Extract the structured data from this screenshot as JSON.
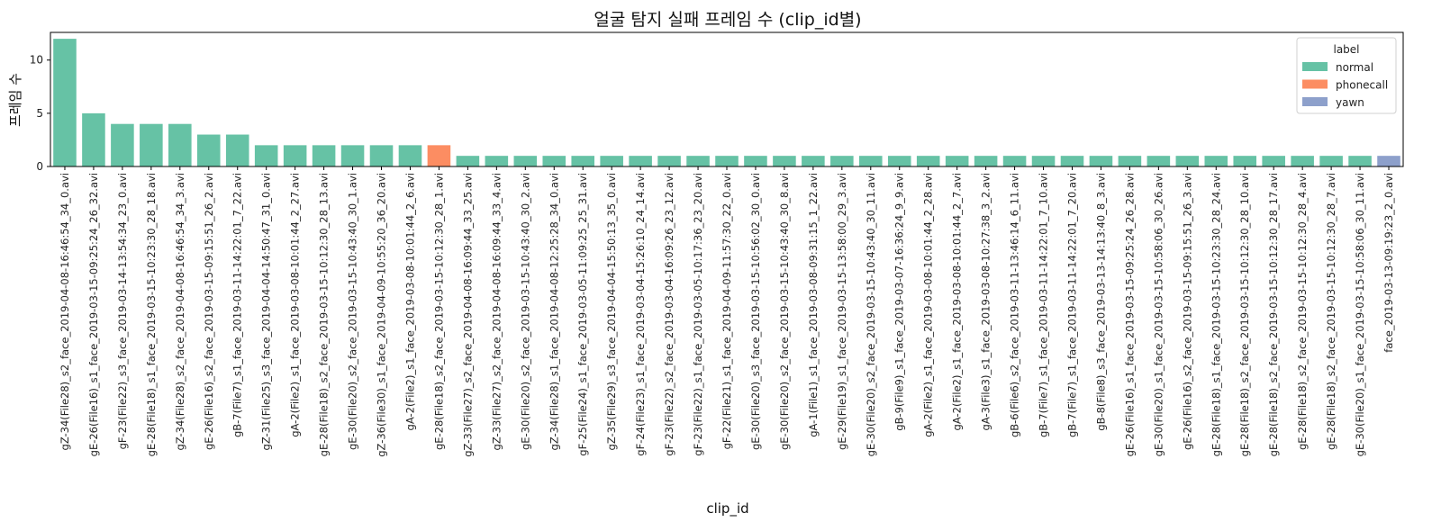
{
  "chart_data": {
    "type": "bar",
    "title": "얼굴 탐지 실패 프레임 수 (clip_id별)",
    "xlabel": "clip_id",
    "ylabel": "프레임 수",
    "ylim": [
      0,
      12.6
    ],
    "yticks": [
      0,
      5,
      10
    ],
    "grid": false,
    "legend": {
      "title": "label",
      "placement": "top-right",
      "entries": [
        {
          "name": "normal",
          "color": "#66c2a5"
        },
        {
          "name": "phonecall",
          "color": "#fc8d62"
        },
        {
          "name": "yawn",
          "color": "#8da0cb"
        }
      ]
    },
    "colors": {
      "normal": "#66c2a5",
      "phonecall": "#fc8d62",
      "yawn": "#8da0cb"
    },
    "categories": [
      "gZ-34(File28)_s2_face_2019-04-08-16:46:54_34_0.avi",
      "gE-26(File16)_s1_face_2019-03-15-09:25:24_26_32.avi",
      "gF-23(File22)_s3_face_2019-03-14-13:54:34_23_0.avi",
      "gE-28(File18)_s1_face_2019-03-15-10:23:30_28_18.avi",
      "gZ-34(File28)_s2_face_2019-04-08-16:46:54_34_3.avi",
      "gE-26(File16)_s2_face_2019-03-15-09:15:51_26_2.avi",
      "gB-7(File7)_s1_face_2019-03-11-14:22:01_7_22.avi",
      "gZ-31(File25)_s3_face_2019-04-04-14:50:47_31_0.avi",
      "gA-2(File2)_s1_face_2019-03-08-10:01:44_2_27.avi",
      "gE-28(File18)_s2_face_2019-03-15-10:12:30_28_13.avi",
      "gE-30(File20)_s2_face_2019-03-15-10:43:40_30_1.avi",
      "gZ-36(File30)_s1_face_2019-04-09-10:55:20_36_20.avi",
      "gA-2(File2)_s1_face_2019-03-08-10:01:44_2_6.avi",
      "gE-28(File18)_s2_face_2019-03-15-10:12:30_28_1.avi",
      "gZ-33(File27)_s2_face_2019-04-08-16:09:44_33_25.avi",
      "gZ-33(File27)_s2_face_2019-04-08-16:09:44_33_4.avi",
      "gE-30(File20)_s2_face_2019-03-15-10:43:40_30_2.avi",
      "gZ-34(File28)_s1_face_2019-04-08-12:25:28_34_0.avi",
      "gF-25(File24)_s1_face_2019-03-05-11:09:25_25_31.avi",
      "gZ-35(File29)_s3_face_2019-04-04-15:50:13_35_0.avi",
      "gF-24(File23)_s1_face_2019-03-04-15:26:10_24_14.avi",
      "gF-23(File22)_s2_face_2019-03-04-16:09:26_23_12.avi",
      "gF-23(File22)_s1_face_2019-03-05-10:17:36_23_20.avi",
      "gF-22(File21)_s1_face_2019-04-09-11:57:30_22_0.avi",
      "gE-30(File20)_s3_face_2019-03-15-10:56:02_30_0.avi",
      "gE-30(File20)_s2_face_2019-03-15-10:43:40_30_8.avi",
      "gA-1(File1)_s1_face_2019-03-08-09:31:15_1_22.avi",
      "gE-29(File19)_s1_face_2019-03-15-13:58:00_29_3.avi",
      "gE-30(File20)_s2_face_2019-03-15-10:43:40_30_11.avi",
      "gB-9(File9)_s1_face_2019-03-07-16:36:24_9_9.avi",
      "gA-2(File2)_s1_face_2019-03-08-10:01:44_2_28.avi",
      "gA-2(File2)_s1_face_2019-03-08-10:01:44_2_7.avi",
      "gA-3(File3)_s1_face_2019-03-08-10:27:38_3_2.avi",
      "gB-6(File6)_s2_face_2019-03-11-13:46:14_6_11.avi",
      "gB-7(File7)_s1_face_2019-03-11-14:22:01_7_10.avi",
      "gB-7(File7)_s1_face_2019-03-11-14:22:01_7_20.avi",
      "gB-8(File8)_s3_face_2019-03-13-14:13:40_8_3.avi",
      "gE-26(File16)_s1_face_2019-03-15-09:25:24_26_28.avi",
      "gE-30(File20)_s1_face_2019-03-15-10:58:06_30_26.avi",
      "gE-26(File16)_s2_face_2019-03-15-09:15:51_26_3.avi",
      "gE-28(File18)_s1_face_2019-03-15-10:23:30_28_24.avi",
      "gE-28(File18)_s2_face_2019-03-15-10:12:30_28_10.avi",
      "gE-28(File18)_s2_face_2019-03-15-10:12:30_28_17.avi",
      "gE-28(File18)_s2_face_2019-03-15-10:12:30_28_4.avi",
      "gE-28(File18)_s2_face_2019-03-15-10:12:30_28_7.avi",
      "gE-30(File20)_s1_face_2019-03-15-10:58:06_30_11.avi",
      "face_2019-03-13-09:19:23_2_0.avi"
    ],
    "values": [
      12,
      5,
      4,
      4,
      4,
      3,
      3,
      2,
      2,
      2,
      2,
      2,
      2,
      2,
      1,
      1,
      1,
      1,
      1,
      1,
      1,
      1,
      1,
      1,
      1,
      1,
      1,
      1,
      1,
      1,
      1,
      1,
      1,
      1,
      1,
      1,
      1,
      1,
      1,
      1,
      1,
      1,
      1,
      1,
      1,
      1,
      1
    ],
    "labels": [
      "normal",
      "normal",
      "normal",
      "normal",
      "normal",
      "normal",
      "normal",
      "normal",
      "normal",
      "normal",
      "normal",
      "normal",
      "normal",
      "phonecall",
      "normal",
      "normal",
      "normal",
      "normal",
      "normal",
      "normal",
      "normal",
      "normal",
      "normal",
      "normal",
      "normal",
      "normal",
      "normal",
      "normal",
      "normal",
      "normal",
      "normal",
      "normal",
      "normal",
      "normal",
      "normal",
      "normal",
      "normal",
      "normal",
      "normal",
      "normal",
      "normal",
      "normal",
      "normal",
      "normal",
      "normal",
      "normal",
      "yawn"
    ]
  }
}
